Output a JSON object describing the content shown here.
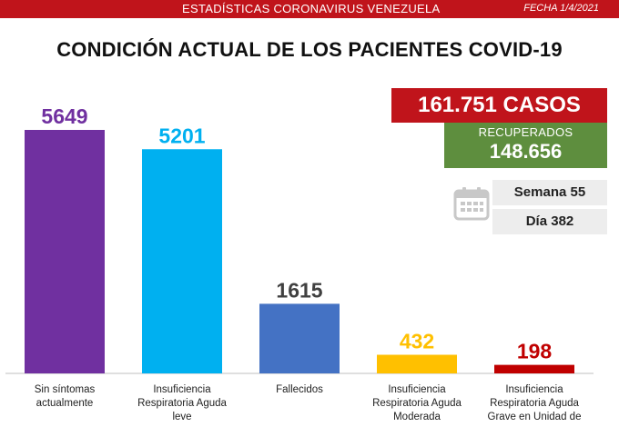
{
  "header": {
    "title": "ESTADÍSTICAS CORONAVIRUS VENEZUELA",
    "date": "FECHA 1/4/2021"
  },
  "summary": {
    "cases": "161.751 CASOS",
    "recovered_label": "RECUPERADOS",
    "recovered_value": "148.656",
    "week": "Semana 55",
    "day": "Día 382",
    "icon": "calendar-icon"
  },
  "colors": {
    "header": "#c0141b",
    "recovered": "#5e8e3e"
  },
  "chart_data": {
    "type": "bar",
    "title": "CONDICIÓN ACTUAL DE LOS PACIENTES COVID-19",
    "categories": [
      "Sin síntomas actualmente",
      "Insuficiencia Respiratoria Aguda leve",
      "Fallecidos",
      "Insuficiencia Respiratoria Aguda Moderada",
      "Insuficiencia Respiratoria Aguda Grave en Unidad de"
    ],
    "values": [
      5649,
      5201,
      1615,
      432,
      198
    ],
    "value_labels": [
      "5649",
      "5201",
      "1615",
      "432",
      "198"
    ],
    "colors": [
      "#7030a0",
      "#00b0f0",
      "#4472c4",
      "#ffc000",
      "#c00000"
    ],
    "label_colors": [
      "#7030a0",
      "#00b0f0",
      "#404040",
      "#ffc000",
      "#c00000"
    ],
    "ylim": [
      0,
      5649
    ],
    "grid": false,
    "legend": "none"
  }
}
